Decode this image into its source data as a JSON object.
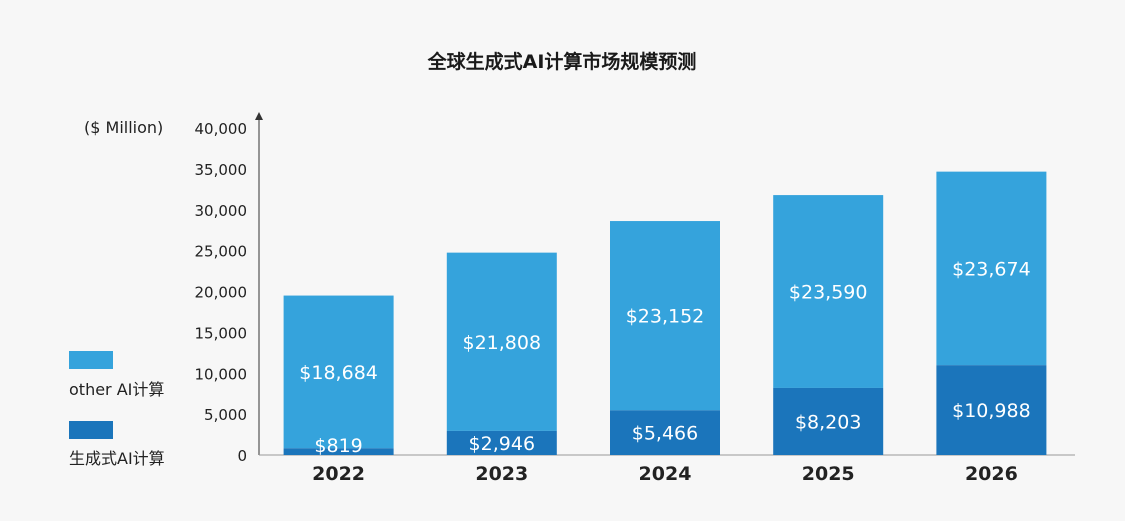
{
  "chart_data": {
    "type": "bar",
    "stacked": true,
    "title": "全球生成式AI计算市场规模预测",
    "ylabel": "($ Million)",
    "ylim": [
      0,
      40000
    ],
    "yticks": [
      0,
      5000,
      10000,
      15000,
      20000,
      25000,
      30000,
      35000,
      40000
    ],
    "ytick_labels": [
      "0",
      "5,000",
      "10,000",
      "15,000",
      "20,000",
      "25,000",
      "30,000",
      "35,000",
      "40,000"
    ],
    "categories": [
      "2022",
      "2023",
      "2024",
      "2025",
      "2026"
    ],
    "series": [
      {
        "name": "生成式AI计算",
        "color": "#1b75bb",
        "values": [
          819,
          2946,
          5466,
          8203,
          10988
        ],
        "labels": [
          "$819",
          "$2,946",
          "$5,466",
          "$8,203",
          "$10,988"
        ]
      },
      {
        "name": "other AI计算",
        "color": "#35a3dc",
        "values": [
          18684,
          21808,
          23152,
          23590,
          23674
        ],
        "labels": [
          "$18,684",
          "$21,808",
          "$23,152",
          "$23,590",
          "$23,674"
        ]
      }
    ],
    "legend_position": "left",
    "grid": false
  },
  "legend": {
    "items": [
      {
        "label": "other AI计算",
        "color": "#35a3dc"
      },
      {
        "label": "生成式AI计算",
        "color": "#1b75bb"
      }
    ]
  }
}
